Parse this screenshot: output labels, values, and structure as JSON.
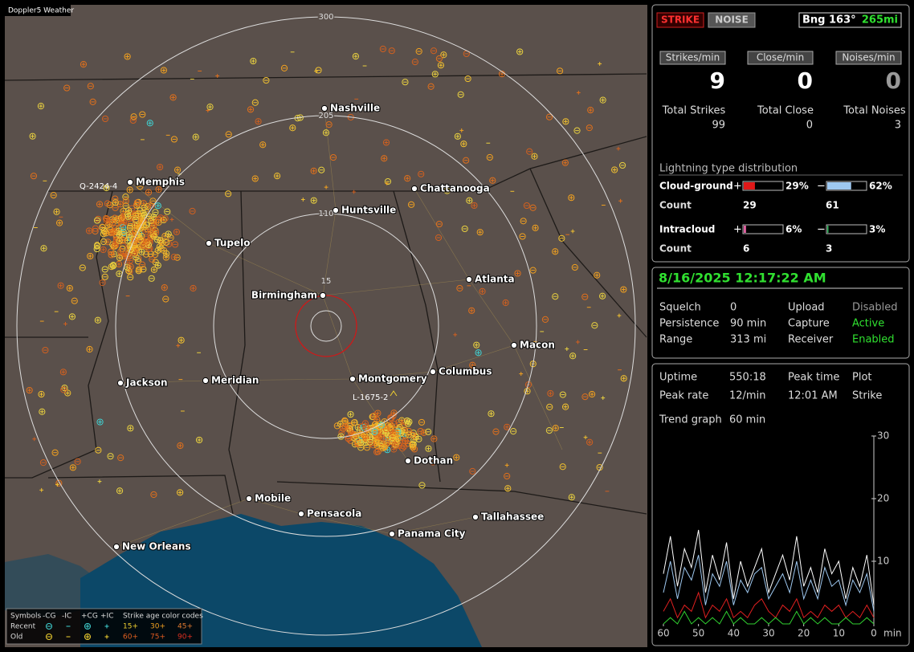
{
  "map": {
    "title": "Doppler5 Weather",
    "range_rings": [
      300,
      205,
      110,
      15
    ],
    "cities": [
      "Nashville",
      "Memphis",
      "Chattanooga",
      "Huntsville",
      "Tupelo",
      "Birmingham",
      "Atlanta",
      "Macon",
      "Jackson",
      "Meridian",
      "Montgomery",
      "Columbus",
      "Dothan",
      "Mobile",
      "Pensacola",
      "Tallahassee",
      "Panama City",
      "New Orleans"
    ],
    "storm_ids": [
      "Q-2424-4",
      "L-1675-2"
    ],
    "legend": {
      "symbols_label": "Symbols",
      "symbol_types": [
        "-CG",
        "-IC",
        "+CG",
        "+IC"
      ],
      "age_label": "Strike age color codes",
      "rows": [
        "Recent",
        "Old"
      ],
      "recent_ages": [
        "15+",
        "30+",
        "45+"
      ],
      "old_ages": [
        "60+",
        "75+",
        "90+"
      ]
    }
  },
  "panel": {
    "buttons": [
      "STRIKE",
      "NOISE"
    ],
    "bearing": "Bng 163°",
    "distance": "265mi",
    "rates": [
      {
        "label": "Strikes/min",
        "value": 9
      },
      {
        "label": "Close/min",
        "value": 0
      },
      {
        "label": "Noises/min",
        "value": 0
      }
    ],
    "totals": [
      {
        "label": "Total Strikes",
        "value": 99
      },
      {
        "label": "Total Close",
        "value": 0
      },
      {
        "label": "Total Noises",
        "value": 3
      }
    ],
    "distribution": {
      "title": "Lightning type distribution",
      "plus_sign": "+",
      "minus_sign": "−",
      "count_label": "Count",
      "rows": [
        {
          "label": "Cloud-ground",
          "plus": {
            "value": 29,
            "label": "29%"
          },
          "minus": {
            "value": 62,
            "label": "62%"
          },
          "counts": [
            29,
            61
          ]
        },
        {
          "label": "Intracloud",
          "plus": {
            "value": 6,
            "label": "6%"
          },
          "minus": {
            "value": 3,
            "label": "3%"
          },
          "counts": [
            6,
            3
          ]
        }
      ]
    }
  },
  "status": {
    "datetime": "8/16/2025 12:17:22 AM",
    "fields": [
      {
        "label": "Squelch",
        "value": 0
      },
      {
        "label": "Upload",
        "value": "Disabled"
      },
      {
        "label": "Persistence",
        "value": "90 min"
      },
      {
        "label": "Capture",
        "value": "Active"
      },
      {
        "label": "Range",
        "value": "313 mi"
      },
      {
        "label": "Receiver",
        "value": "Enabled"
      }
    ]
  },
  "stats": {
    "fields": [
      {
        "label": "Uptime",
        "value": "550:18"
      },
      {
        "label": "Peak time",
        "value": "12:01 AM"
      },
      {
        "label": "Plot",
        "value": "Strike"
      },
      {
        "label": "Peak rate",
        "value": "12/min"
      },
      {
        "label": "Trend graph",
        "value": "60 min"
      }
    ]
  },
  "trend_chart": {
    "type": "line",
    "x": [
      60,
      58,
      56,
      54,
      52,
      50,
      48,
      46,
      44,
      42,
      40,
      38,
      36,
      34,
      32,
      30,
      28,
      26,
      24,
      22,
      20,
      18,
      16,
      14,
      12,
      10,
      8,
      6,
      4,
      2,
      0
    ],
    "xlim": [
      60,
      0
    ],
    "ylim": [
      0,
      30
    ],
    "xticks": [
      60,
      50,
      40,
      30,
      20,
      10,
      0
    ],
    "yticks": [
      10,
      20,
      30
    ],
    "x_unit": "min",
    "series": [
      {
        "color": "#ffffff",
        "values": [
          8,
          14,
          6,
          12,
          9,
          15,
          5,
          11,
          7,
          13,
          4,
          10,
          6,
          9,
          12,
          5,
          8,
          11,
          7,
          14,
          6,
          9,
          5,
          12,
          8,
          10,
          4,
          9,
          6,
          11,
          3
        ]
      },
      {
        "color": "#9ec8f0",
        "values": [
          5,
          10,
          4,
          9,
          7,
          11,
          3,
          8,
          6,
          10,
          3,
          7,
          5,
          8,
          9,
          4,
          6,
          8,
          5,
          10,
          4,
          7,
          4,
          9,
          6,
          7,
          3,
          7,
          5,
          8,
          2
        ]
      },
      {
        "color": "#e02020",
        "values": [
          2,
          4,
          1,
          3,
          2,
          5,
          1,
          3,
          2,
          4,
          1,
          2,
          1,
          3,
          4,
          2,
          1,
          3,
          2,
          4,
          1,
          2,
          1,
          3,
          2,
          3,
          1,
          2,
          1,
          3,
          1
        ]
      },
      {
        "color": "#30d030",
        "values": [
          0,
          1,
          0,
          2,
          0,
          1,
          0,
          1,
          0,
          2,
          0,
          1,
          0,
          0,
          1,
          0,
          1,
          0,
          0,
          2,
          0,
          1,
          0,
          1,
          0,
          0,
          1,
          0,
          0,
          1,
          0
        ]
      }
    ]
  }
}
